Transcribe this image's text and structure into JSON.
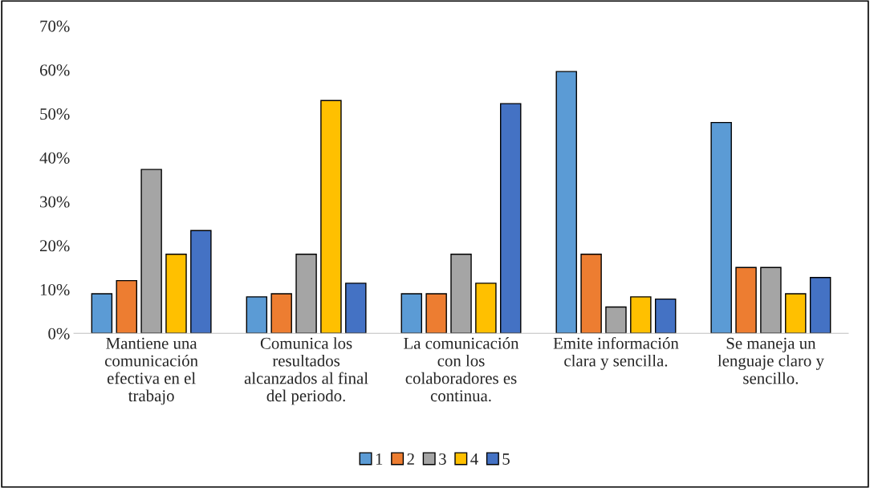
{
  "chart_data": {
    "type": "bar",
    "categories": [
      "Mantiene una\ncomunicación\nefectiva en el\ntrabajo",
      "Comunica los\nresultados\nalcanzados al final\ndel periodo.",
      "La comunicación\ncon los\ncolaboradores es\ncontinua.",
      "Emite información\nclara y sencilla.",
      "Se maneja un\nlenguaje claro y\nsencillo."
    ],
    "series": [
      {
        "name": "1",
        "color": "#5b9bd5",
        "values": [
          9,
          8.3,
          9,
          59.6,
          48
        ]
      },
      {
        "name": "2",
        "color": "#ed7d31",
        "values": [
          12,
          9,
          9,
          18,
          15
        ]
      },
      {
        "name": "3",
        "color": "#a5a5a5",
        "values": [
          37.3,
          18,
          18,
          6,
          15
        ]
      },
      {
        "name": "4",
        "color": "#ffc000",
        "values": [
          18,
          53,
          11.4,
          8.3,
          9
        ]
      },
      {
        "name": "5",
        "color": "#4472c4",
        "values": [
          23.4,
          11.4,
          52.3,
          7.8,
          12.7
        ]
      }
    ],
    "ylim": [
      0,
      70
    ],
    "yticks": [
      {
        "value": 0,
        "label": "0%"
      },
      {
        "value": 10,
        "label": "10%"
      },
      {
        "value": 20,
        "label": "20%"
      },
      {
        "value": 30,
        "label": "30%"
      },
      {
        "value": 40,
        "label": "40%"
      },
      {
        "value": 50,
        "label": "50%"
      },
      {
        "value": 60,
        "label": "60%"
      },
      {
        "value": 70,
        "label": "70%"
      }
    ],
    "grid": false,
    "legend": "bottom"
  }
}
